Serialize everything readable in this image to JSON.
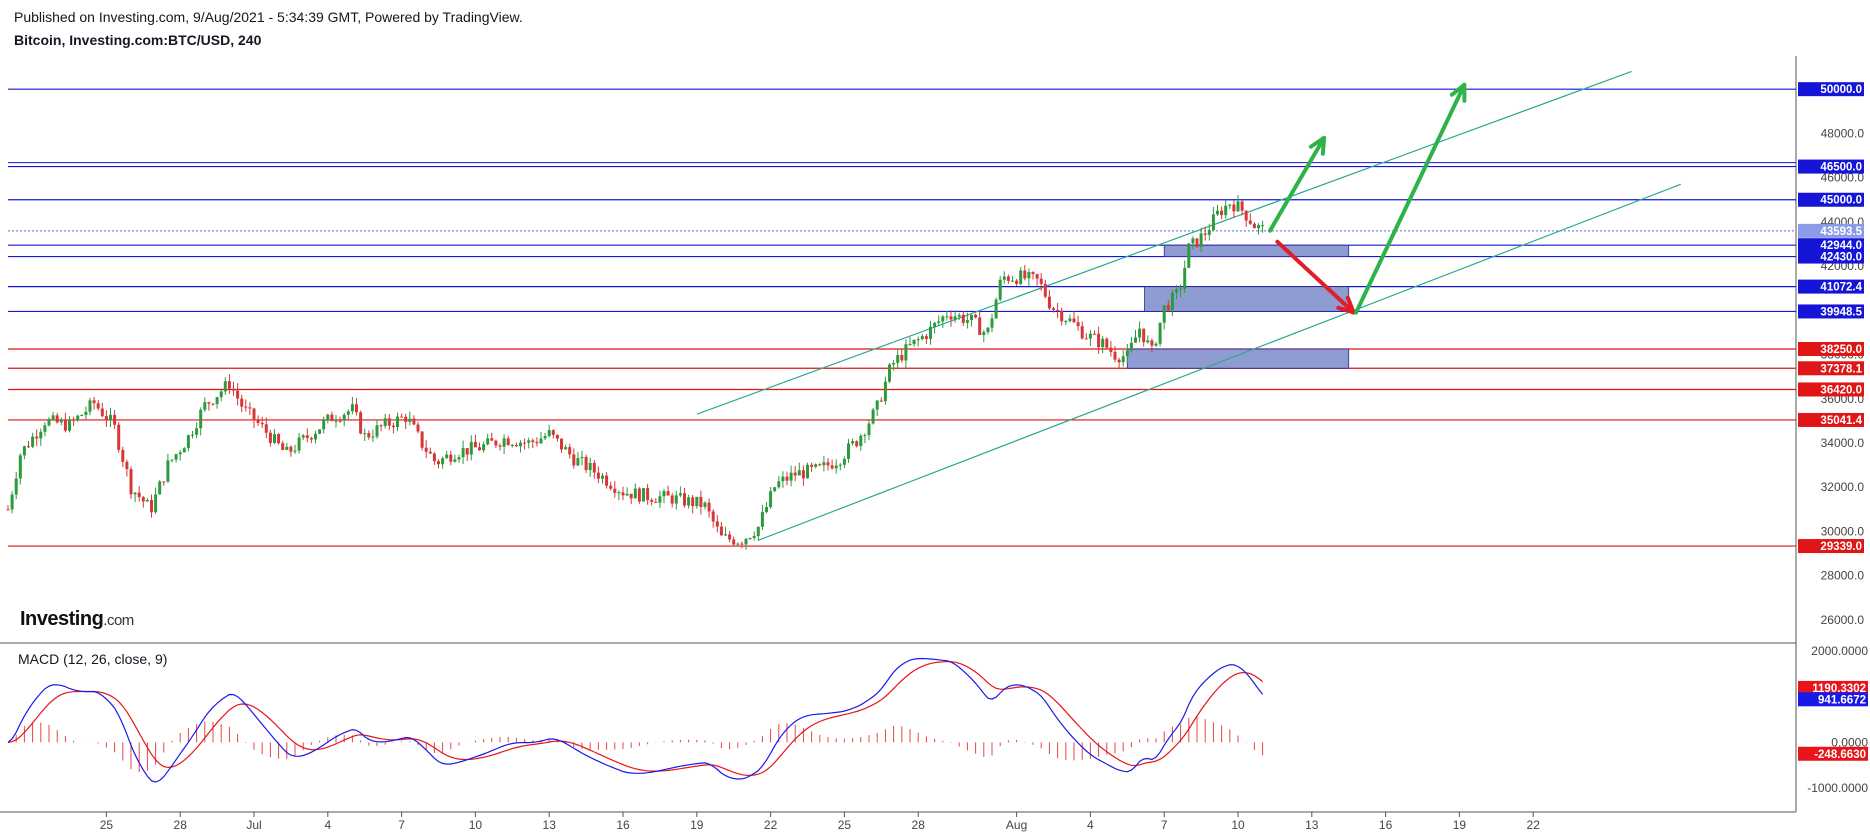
{
  "header": {
    "published": "Published on Investing.com, 9/Aug/2021 - 5:34:39 GMT, Powered by TradingView.",
    "symbol": "Bitcoin, Investing.com:BTC/USD, 240"
  },
  "logo": {
    "main": "Investing",
    "suffix": ".com"
  },
  "macd": {
    "title": "MACD (12, 26, close, 9)",
    "ylim": [
      -1500,
      2150
    ],
    "ticks": [
      "2000.0000",
      "0.0000",
      "-1000.0000"
    ],
    "tick_values": [
      2000,
      0,
      -1000
    ],
    "badges": [
      {
        "label": "1190.3302",
        "value": 1190,
        "color": "#e8141a"
      },
      {
        "label": "941.6672",
        "value": 941,
        "color": "#1a1ae8"
      },
      {
        "label": "-248.6630",
        "value": -249,
        "color": "#e8141a"
      }
    ]
  },
  "colors": {
    "up": "#26a69a",
    "down": "#ef5350",
    "candle_up": "#2e9a3e",
    "candle_down": "#d63737",
    "blue_line": "#1515d8",
    "red_line": "#e01515",
    "channel": "#2fa896",
    "zone": "#7b8bc9"
  },
  "chart_data": {
    "type": "candlestick",
    "title": "Bitcoin, Investing.com:BTC/USD, 240",
    "ylim": [
      25000,
      51500
    ],
    "x_ticks": [
      "25",
      "28",
      "Jul",
      "4",
      "7",
      "10",
      "13",
      "16",
      "19",
      "22",
      "25",
      "28",
      "Aug",
      "4",
      "7",
      "10",
      "13",
      "16",
      "19",
      "22"
    ],
    "x_tick_days": [
      25,
      28,
      31,
      34,
      37,
      40,
      43,
      46,
      49,
      52,
      55,
      58,
      62,
      65,
      68,
      71,
      74,
      77,
      80,
      83
    ],
    "y_ticks": [
      "48000.0",
      "46000.0",
      "44000.0",
      "42000.0",
      "40000.0",
      "38000.0",
      "36000.0",
      "34000.0",
      "32000.0",
      "30000.0",
      "28000.0",
      "26000.0"
    ],
    "y_tick_values": [
      48000,
      46000,
      44000,
      42000,
      40000,
      38000,
      36000,
      34000,
      32000,
      30000,
      28000,
      26000
    ],
    "horizontal_levels": [
      {
        "label": "50000.0",
        "value": 50000,
        "kind": "resistance",
        "color": "#1515d8"
      },
      {
        "label": "46500.0",
        "value": 46500,
        "kind": "resistance",
        "color": "#1515d8"
      },
      {
        "label": "45000.0",
        "value": 45000,
        "kind": "resistance",
        "color": "#1515d8"
      },
      {
        "label": "42944.0",
        "value": 42944,
        "kind": "support",
        "color": "#1515d8"
      },
      {
        "label": "42430.0",
        "value": 42430,
        "kind": "support",
        "color": "#1515d8"
      },
      {
        "label": "41072.4",
        "value": 41072,
        "kind": "support",
        "color": "#1515d8"
      },
      {
        "label": "39948.5",
        "value": 39948,
        "kind": "support",
        "color": "#1515d8"
      },
      {
        "label": "38250.0",
        "value": 38250,
        "kind": "support",
        "color": "#e01515"
      },
      {
        "label": "37378.1",
        "value": 37378,
        "kind": "support",
        "color": "#e01515"
      },
      {
        "label": "36420.0",
        "value": 36420,
        "kind": "support",
        "color": "#e01515"
      },
      {
        "label": "35041.4",
        "value": 35041,
        "kind": "support",
        "color": "#e01515"
      },
      {
        "label": "29339.0",
        "value": 29339,
        "kind": "support",
        "color": "#e01515"
      }
    ],
    "last_price": {
      "label": "43593.5",
      "value": 43593
    },
    "close_path": [
      [
        21.0,
        31000
      ],
      [
        21.5,
        33500
      ],
      [
        22.5,
        35000
      ],
      [
        23.5,
        34800
      ],
      [
        24.5,
        35800
      ],
      [
        25.3,
        34800
      ],
      [
        26.0,
        32000
      ],
      [
        26.8,
        31000
      ],
      [
        27.5,
        33000
      ],
      [
        28.3,
        34200
      ],
      [
        29.0,
        35700
      ],
      [
        30.0,
        36700
      ],
      [
        30.6,
        35500
      ],
      [
        31.5,
        34500
      ],
      [
        32.3,
        33500
      ],
      [
        33.3,
        34400
      ],
      [
        34.2,
        35200
      ],
      [
        35.0,
        35500
      ],
      [
        35.5,
        34300
      ],
      [
        36.3,
        34800
      ],
      [
        37.2,
        35200
      ],
      [
        37.8,
        34000
      ],
      [
        38.4,
        33100
      ],
      [
        39.2,
        33600
      ],
      [
        40.2,
        33800
      ],
      [
        41.2,
        34200
      ],
      [
        42.2,
        34000
      ],
      [
        43.0,
        34400
      ],
      [
        44.0,
        33300
      ],
      [
        45.0,
        32600
      ],
      [
        46.0,
        31800
      ],
      [
        47.0,
        31600
      ],
      [
        48.0,
        31500
      ],
      [
        49.3,
        31200
      ],
      [
        50.0,
        29700
      ],
      [
        50.8,
        29600
      ],
      [
        51.5,
        30200
      ],
      [
        52.2,
        32100
      ],
      [
        53.0,
        32600
      ],
      [
        54.0,
        32800
      ],
      [
        54.8,
        33300
      ],
      [
        55.5,
        34100
      ],
      [
        56.3,
        35500
      ],
      [
        56.9,
        37500
      ],
      [
        57.6,
        38300
      ],
      [
        58.3,
        38900
      ],
      [
        59.2,
        39900
      ],
      [
        60.2,
        39500
      ],
      [
        60.8,
        38900
      ],
      [
        61.4,
        41500
      ],
      [
        62.2,
        41500
      ],
      [
        62.9,
        41300
      ],
      [
        63.4,
        40200
      ],
      [
        64.2,
        39500
      ],
      [
        64.8,
        38900
      ],
      [
        65.5,
        38500
      ],
      [
        66.0,
        38000
      ],
      [
        66.5,
        37900
      ],
      [
        67.0,
        39200
      ],
      [
        67.5,
        38100
      ],
      [
        68.0,
        40100
      ],
      [
        68.6,
        40800
      ],
      [
        69.0,
        42800
      ],
      [
        69.6,
        43400
      ],
      [
        70.2,
        44400
      ],
      [
        70.7,
        44900
      ],
      [
        71.2,
        44500
      ],
      [
        71.7,
        43800
      ],
      [
        72.1,
        43600
      ]
    ],
    "channel": {
      "upper": [
        [
          49.0,
          35300
        ],
        [
          87.0,
          50800
        ]
      ],
      "lower": [
        [
          51.5,
          29600
        ],
        [
          89.0,
          45700
        ]
      ]
    },
    "zones": [
      {
        "x": [
          68.0,
          75.5
        ],
        "y": [
          42430,
          42944
        ]
      },
      {
        "x": [
          67.2,
          75.5
        ],
        "y": [
          39948,
          41072
        ]
      },
      {
        "x": [
          66.5,
          75.5
        ],
        "y": [
          37378,
          38250
        ]
      }
    ],
    "arrows": [
      {
        "from": [
          72.3,
          43600
        ],
        "to": [
          74.5,
          47800
        ],
        "color": "#2db34a"
      },
      {
        "from": [
          72.6,
          43100
        ],
        "to": [
          75.7,
          39900
        ],
        "color": "#e11d2a"
      },
      {
        "from": [
          75.8,
          39900
        ],
        "to": [
          80.2,
          50200
        ],
        "color": "#2db34a"
      }
    ]
  }
}
